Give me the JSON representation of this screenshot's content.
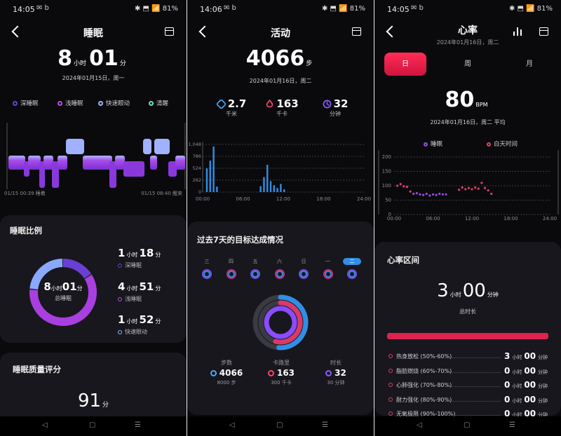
{
  "status_bars": [
    {
      "time": "14:05",
      "icons": "✉ b",
      "right": "✱ ⬒ 📶 81%"
    },
    {
      "time": "14:06",
      "icons": "✉ b",
      "right": "✱ ⬒ 📶 81%"
    },
    {
      "time": "14:05",
      "icons": "✉ b",
      "right": "✱ ⬒ 📶 81%"
    }
  ],
  "sleep": {
    "title": "睡眠",
    "hours": "8",
    "hours_unit": "小时",
    "minutes": "01",
    "minutes_unit": "分",
    "date": "2024年01月15日，周一",
    "legend": [
      "深睡眠",
      "浅睡眠",
      "快速眼动",
      "清醒"
    ],
    "legend_colors": [
      "#6a3fd4",
      "#c04de0",
      "#9fb6ff",
      "#6fe0c0"
    ],
    "chart_start": "01/15 00:39 睡着",
    "chart_end": "01/15 08:40 醒来",
    "ratio_card": {
      "title": "睡眠比例",
      "center_hours": "8",
      "center_h_unit": "小时",
      "center_minutes": "01",
      "center_m_unit": "分",
      "center_label": "总睡眠",
      "items": [
        {
          "h": "1",
          "hu": "小时",
          "m": "18",
          "mu": "分",
          "label": "深睡眠",
          "color": "#6a3fd4",
          "minutes": 78
        },
        {
          "h": "4",
          "hu": "小时",
          "m": "51",
          "mu": "分",
          "label": "浅睡眠",
          "color": "#a93fe0",
          "minutes": 291
        },
        {
          "h": "1",
          "hu": "小时",
          "m": "52",
          "mu": "分",
          "label": "快速眼动",
          "color": "#8aa8ff",
          "minutes": 112
        }
      ]
    },
    "quality_card": {
      "title": "睡眠质量评分",
      "score": "91",
      "unit": "分"
    }
  },
  "activity": {
    "title": "活动",
    "steps": "4066",
    "steps_unit": "步",
    "date": "2024年01月16日，周二",
    "stats": [
      {
        "value": "2.7",
        "unit": "千米",
        "icon": "distance-icon",
        "color": "#4aa8ff"
      },
      {
        "value": "163",
        "unit": "千卡",
        "icon": "flame-icon",
        "color": "#ff4466"
      },
      {
        "value": "32",
        "unit": "分钟",
        "icon": "clock-icon",
        "color": "#8a5cff"
      }
    ],
    "chart_data": {
      "type": "bar",
      "y_ticks": [
        "1,048",
        "786",
        "524",
        "262",
        "0"
      ],
      "x_ticks": [
        "00:00",
        "06:00",
        "12:00",
        "18:00",
        "24:00"
      ],
      "ylim": [
        0,
        1048
      ],
      "bars": [
        {
          "x": 0.5,
          "y": 520
        },
        {
          "x": 1.0,
          "y": 690
        },
        {
          "x": 1.5,
          "y": 1000
        },
        {
          "x": 2.0,
          "y": 120
        },
        {
          "x": 8.5,
          "y": 130
        },
        {
          "x": 9.0,
          "y": 330
        },
        {
          "x": 9.5,
          "y": 600
        },
        {
          "x": 10.0,
          "y": 240
        },
        {
          "x": 10.5,
          "y": 150
        },
        {
          "x": 11.0,
          "y": 90
        },
        {
          "x": 11.5,
          "y": 180
        },
        {
          "x": 12.0,
          "y": 60
        }
      ],
      "color": "#2f8fe6"
    },
    "goals_card": {
      "title": "过去7天的目标达成情况",
      "days": [
        "三",
        "四",
        "五",
        "六",
        "日",
        "一",
        "二"
      ],
      "selected_day": 6,
      "stats": [
        {
          "label": "步数",
          "value": "4066",
          "sub": "8000 步",
          "icon": "footprints-icon",
          "color": "#4aa8ff"
        },
        {
          "label": "卡路里",
          "value": "163",
          "sub": "300 千卡",
          "icon": "flame-icon",
          "color": "#ff4466"
        },
        {
          "label": "时长",
          "value": "32",
          "sub": "30 分钟",
          "icon": "clock-icon",
          "color": "#8a5cff"
        }
      ],
      "rings": [
        {
          "color": "#2f8fe6",
          "progress": 0.51
        },
        {
          "color": "#d83a6a",
          "progress": 0.54
        },
        {
          "color": "#8a4cff",
          "progress": 1.0
        }
      ]
    }
  },
  "heart": {
    "title": "心率",
    "subtitle": "2024年01月16日，周二",
    "tabs": [
      "日",
      "周",
      "月"
    ],
    "active_tab": 0,
    "bpm": "80",
    "bpm_unit": "BPM",
    "date": "2024年01月16日，周二 平均",
    "legend": [
      "睡眠",
      "白天时间"
    ],
    "legend_colors": [
      "#9a4ce0",
      "#e0415e"
    ],
    "chart_data": {
      "type": "scatter",
      "y_ticks": [
        "200",
        "150",
        "100",
        "50",
        "0"
      ],
      "x_ticks": [
        "00:00",
        "06:00",
        "12:00",
        "18:00",
        "24:00"
      ],
      "ylim": [
        0,
        200
      ],
      "series": [
        {
          "name": "睡眠",
          "color": "#9a4ce0",
          "points": [
            [
              3,
              72
            ],
            [
              3.5,
              74
            ],
            [
              4,
              70
            ],
            [
              4.5,
              68
            ],
            [
              5,
              72
            ],
            [
              5.5,
              66
            ],
            [
              6,
              70
            ],
            [
              6.5,
              68
            ],
            [
              7,
              72
            ],
            [
              7.5,
              70
            ],
            [
              8,
              70
            ]
          ]
        },
        {
          "name": "白天时间",
          "color": "#e0415e",
          "points": [
            [
              0.5,
              100
            ],
            [
              1,
              106
            ],
            [
              1.5,
              98
            ],
            [
              2,
              96
            ],
            [
              2.5,
              80
            ],
            [
              10,
              86
            ],
            [
              10.5,
              94
            ],
            [
              11,
              88
            ],
            [
              11.5,
              92
            ],
            [
              12,
              88
            ],
            [
              12.5,
              94
            ],
            [
              13,
              90
            ],
            [
              13.5,
              110
            ],
            [
              14,
              92
            ],
            [
              14.5,
              84
            ],
            [
              15,
              72
            ]
          ]
        }
      ]
    },
    "zone_card": {
      "title": "心率区间",
      "hours": "3",
      "hours_unit": "小时",
      "minutes": "00",
      "minutes_unit": "分钟",
      "label": "总时长",
      "zones": [
        {
          "name": "热身放松 (50%-60%)",
          "h": "3",
          "hu": "小时",
          "m": "00",
          "mu": "分钟"
        },
        {
          "name": "脂肪燃烧 (60%-70%)",
          "h": "0",
          "hu": "小时",
          "m": "00",
          "mu": "分钟"
        },
        {
          "name": "心肺强化 (70%-80%)",
          "h": "0",
          "hu": "小时",
          "m": "00",
          "mu": "分钟"
        },
        {
          "name": "耐力强化 (80%-90%)",
          "h": "0",
          "hu": "小时",
          "m": "00",
          "mu": "分钟"
        },
        {
          "name": "无氧极限 (90%-100%)",
          "h": "0",
          "hu": "小时",
          "m": "00",
          "mu": "分钟"
        }
      ]
    }
  }
}
